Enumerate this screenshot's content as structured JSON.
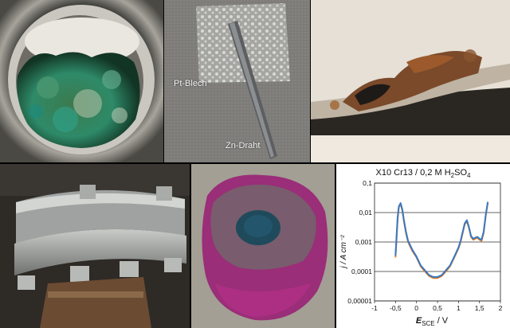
{
  "panels": {
    "zinc_platinum": {
      "label_plate": "Pt-Blech",
      "label_wire": "Zn-Draht"
    }
  },
  "chart_data": {
    "type": "line",
    "title_main": "X10 Cr13 / 0,2 M H",
    "title_sub": "2",
    "title_tail": "SO",
    "title_sub2": "4",
    "ylabel": "j / A cm⁻²",
    "xlabel_main": "E",
    "xlabel_sub": "SCE",
    "xlabel_tail": " / V",
    "xlim": [
      -1,
      2
    ],
    "ylim": [
      1e-05,
      0.1
    ],
    "yscale": "log",
    "x_ticks": [
      "-1",
      "-0,5",
      "0",
      "0,5",
      "1",
      "1,5",
      "2"
    ],
    "y_ticks": [
      "0,00001",
      "0,0001",
      "0,001",
      "0,01",
      "0,1"
    ],
    "grid": "horizontal",
    "series": [
      {
        "color": "#e07a22",
        "x": [
          -0.5,
          -0.48,
          -0.45,
          -0.42,
          -0.38,
          -0.34,
          -0.3,
          -0.25,
          -0.2,
          -0.1,
          0.0,
          0.1,
          0.2,
          0.3,
          0.4,
          0.5,
          0.6,
          0.7,
          0.8,
          0.9,
          1.0,
          1.05,
          1.1,
          1.15,
          1.2,
          1.25,
          1.3,
          1.35,
          1.4,
          1.45,
          1.5,
          1.55,
          1.6,
          1.65,
          1.7
        ],
        "y": [
          0.0003,
          0.001,
          0.006,
          0.015,
          0.02,
          0.012,
          0.005,
          0.002,
          0.001,
          0.0005,
          0.0003,
          0.00015,
          0.0001,
          7e-05,
          6e-05,
          6e-05,
          7e-05,
          0.0001,
          0.00015,
          0.0003,
          0.0006,
          0.001,
          0.002,
          0.004,
          0.005,
          0.003,
          0.0015,
          0.0012,
          0.0013,
          0.0014,
          0.0012,
          0.0011,
          0.002,
          0.008,
          0.022
        ]
      },
      {
        "color": "#3a78c2",
        "x": [
          -0.5,
          -0.48,
          -0.45,
          -0.42,
          -0.38,
          -0.34,
          -0.3,
          -0.25,
          -0.2,
          -0.1,
          0.0,
          0.1,
          0.2,
          0.3,
          0.4,
          0.5,
          0.6,
          0.7,
          0.8,
          0.9,
          1.0,
          1.05,
          1.1,
          1.15,
          1.2,
          1.25,
          1.3,
          1.35,
          1.4,
          1.45,
          1.5,
          1.55,
          1.6,
          1.65,
          1.7
        ],
        "y": [
          0.00035,
          0.0012,
          0.007,
          0.016,
          0.021,
          0.013,
          0.0055,
          0.0022,
          0.0011,
          0.00055,
          0.00032,
          0.00016,
          0.00011,
          7.5e-05,
          6.5e-05,
          6.5e-05,
          7.5e-05,
          0.00011,
          0.00016,
          0.00032,
          0.00065,
          0.0011,
          0.0022,
          0.0043,
          0.0055,
          0.0032,
          0.0016,
          0.0013,
          0.0014,
          0.0015,
          0.0013,
          0.0012,
          0.0022,
          0.0085,
          0.023
        ]
      }
    ]
  }
}
